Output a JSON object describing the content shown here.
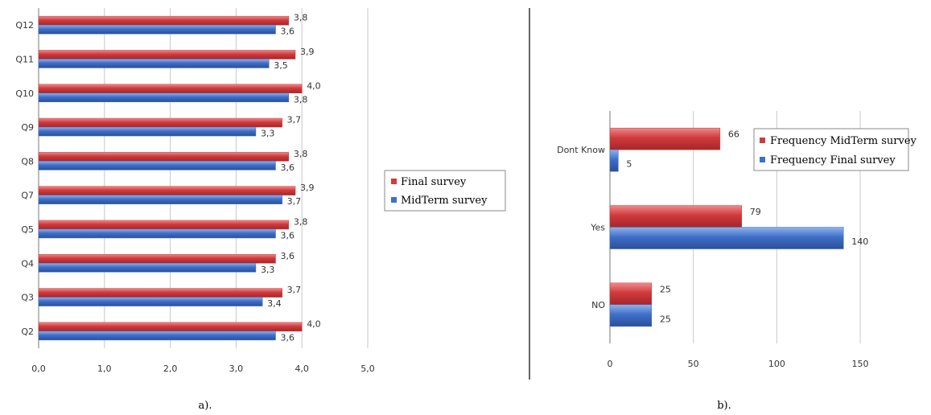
{
  "colors": {
    "red": "#d03a3c",
    "red_dark": "#a5262a",
    "red_light": "#ef8a8a",
    "blue": "#3f6fc8",
    "blue_dark": "#2b4f98",
    "blue_light": "#8fb3ea",
    "grid": "#c8c8c8",
    "divider": "#000000"
  },
  "chart_data": [
    {
      "type": "bar",
      "orientation": "horizontal",
      "panel_label": "a).",
      "categories": [
        "Q2",
        "Q3",
        "Q4",
        "Q5",
        "Q7",
        "Q8",
        "Q9",
        "Q10",
        "Q11",
        "Q12"
      ],
      "series": [
        {
          "name": "Final survey",
          "color": "red",
          "values": [
            4.0,
            3.7,
            3.6,
            3.8,
            3.9,
            3.8,
            3.7,
            4.0,
            3.9,
            3.8
          ],
          "labels": [
            "4,0",
            "3,7",
            "3,6",
            "3,8",
            "3,9",
            "3,8",
            "3,7",
            "4,0",
            "3,9",
            "3,8"
          ]
        },
        {
          "name": "MidTerm survey",
          "color": "blue",
          "values": [
            3.6,
            3.4,
            3.3,
            3.6,
            3.7,
            3.6,
            3.3,
            3.8,
            3.5,
            3.6
          ],
          "labels": [
            "3,6",
            "3,4",
            "3,3",
            "3,6",
            "3,7",
            "3,6",
            "3,3",
            "3,8",
            "3,5",
            "3,6"
          ]
        }
      ],
      "xlim": [
        0,
        5
      ],
      "xticks": [
        0,
        1,
        2,
        3,
        4,
        5
      ],
      "xtick_labels": [
        "0,0",
        "1,0",
        "2,0",
        "3,0",
        "4,0",
        "5,0"
      ],
      "grid": true,
      "legend": "right"
    },
    {
      "type": "bar",
      "orientation": "horizontal",
      "panel_label": "b).",
      "categories": [
        "NO",
        "Yes",
        "Dont Know"
      ],
      "series": [
        {
          "name": "Frequency MidTerm survey",
          "color": "red",
          "values": [
            25,
            79,
            66
          ],
          "labels": [
            "25",
            "79",
            "66"
          ]
        },
        {
          "name": "Frequency Final survey",
          "color": "blue",
          "values": [
            25,
            140,
            5
          ],
          "labels": [
            "25",
            "140",
            "5"
          ]
        }
      ],
      "xlim": [
        0,
        150
      ],
      "xticks": [
        0,
        50,
        100,
        150
      ],
      "xtick_labels": [
        "0",
        "50",
        "100",
        "150"
      ],
      "grid": true,
      "legend": "top-right"
    }
  ]
}
